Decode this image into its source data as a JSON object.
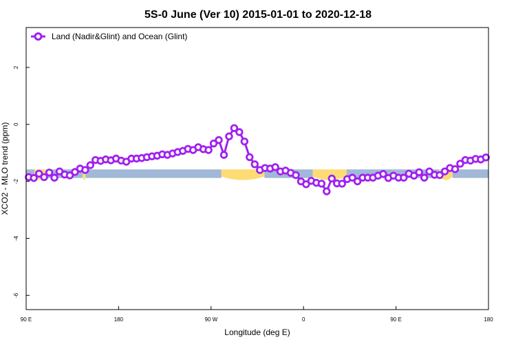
{
  "chart_data": {
    "type": "line",
    "title": "5S-0 June (Ver 10)   2015-01-01 to 2020-12-18",
    "xlabel": "Longitude (deg E)",
    "ylabel": "XCO2 - MLO trend (ppm)",
    "x_ticks": [
      {
        "pos": 0,
        "label": "90 E"
      },
      {
        "pos": 90,
        "label": "180"
      },
      {
        "pos": 180,
        "label": "90 W"
      },
      {
        "pos": 270,
        "label": "0"
      },
      {
        "pos": 360,
        "label": "90 E"
      },
      {
        "pos": 450,
        "label": "180"
      }
    ],
    "xlim": [
      0,
      450
    ],
    "y_ticks": [
      2,
      0,
      -2,
      -4,
      -6
    ],
    "ylim": [
      -6.5,
      3.4
    ],
    "legend": {
      "label": "Land (Nadir&Glint) and Ocean (Glint)",
      "placement": "top-left"
    },
    "series_color": "#a020f0",
    "land_color": "#fddc76",
    "ocean_color": "#a1b8d8",
    "surface_band": {
      "y_top": -1.58,
      "y_bottom": -1.88,
      "segments": [
        {
          "start": 0,
          "end": 8,
          "type": "ocean"
        },
        {
          "start": 8,
          "end": 20,
          "type": "land"
        },
        {
          "start": 20,
          "end": 55,
          "type": "ocean"
        },
        {
          "start": 55,
          "end": 58,
          "type": "land"
        },
        {
          "start": 58,
          "end": 190,
          "type": "ocean"
        },
        {
          "start": 190,
          "end": 232,
          "type": "land"
        },
        {
          "start": 232,
          "end": 279,
          "type": "ocean"
        },
        {
          "start": 279,
          "end": 312,
          "type": "land"
        },
        {
          "start": 312,
          "end": 402,
          "type": "ocean"
        },
        {
          "start": 402,
          "end": 415,
          "type": "land"
        },
        {
          "start": 415,
          "end": 450,
          "type": "ocean"
        }
      ]
    },
    "series": [
      {
        "name": "Land (Nadir&Glint) and Ocean (Glint)",
        "x": [
          2.5,
          7.5,
          12.5,
          17.5,
          22.5,
          27.5,
          32.5,
          37.5,
          42.5,
          47.5,
          52.5,
          57.5,
          62.5,
          67.5,
          72.5,
          77.5,
          82.5,
          87.5,
          92.5,
          97.5,
          102.5,
          107.5,
          112.5,
          117.5,
          122.5,
          127.5,
          132.5,
          137.5,
          142.5,
          147.5,
          152.5,
          157.5,
          162.5,
          167.5,
          172.5,
          177.5,
          182.5,
          187.5,
          192.5,
          197.5,
          202.5,
          207.5,
          212.5,
          217.5,
          222.5,
          227.5,
          232.5,
          237.5,
          242.5,
          247.5,
          252.5,
          257.5,
          262.5,
          267.5,
          272.5,
          277.5,
          282.5,
          287.5,
          292.5,
          297.5,
          302.5,
          307.5,
          312.5,
          317.5,
          322.5,
          327.5,
          332.5,
          337.5,
          342.5,
          347.5,
          352.5,
          357.5,
          362.5,
          367.5,
          372.5,
          377.5,
          382.5,
          387.5,
          392.5,
          397.5,
          402.5,
          407.5,
          412.5,
          417.5,
          422.5,
          427.5,
          432.5,
          437.5,
          442.5,
          447.5
        ],
        "y": [
          -1.85,
          -1.88,
          -1.73,
          -1.85,
          -1.69,
          -1.87,
          -1.65,
          -1.76,
          -1.79,
          -1.67,
          -1.55,
          -1.6,
          -1.43,
          -1.25,
          -1.28,
          -1.23,
          -1.26,
          -1.2,
          -1.27,
          -1.31,
          -1.2,
          -1.2,
          -1.18,
          -1.15,
          -1.12,
          -1.1,
          -1.05,
          -1.07,
          -1.02,
          -0.97,
          -0.93,
          -0.86,
          -0.9,
          -0.8,
          -0.87,
          -0.9,
          -0.67,
          -0.55,
          -1.07,
          -0.42,
          -0.13,
          -0.27,
          -0.6,
          -1.15,
          -1.4,
          -1.6,
          -1.53,
          -1.55,
          -1.5,
          -1.65,
          -1.62,
          -1.7,
          -1.78,
          -2.0,
          -2.1,
          -1.98,
          -2.05,
          -2.08,
          -2.35,
          -1.9,
          -2.07,
          -2.08,
          -1.92,
          -1.87,
          -2.0,
          -1.87,
          -1.87,
          -1.87,
          -1.8,
          -1.74,
          -1.88,
          -1.8,
          -1.87,
          -1.87,
          -1.73,
          -1.8,
          -1.68,
          -1.87,
          -1.65,
          -1.77,
          -1.78,
          -1.65,
          -1.53,
          -1.57,
          -1.38,
          -1.25,
          -1.27,
          -1.21,
          -1.23,
          -1.16
        ]
      }
    ]
  }
}
